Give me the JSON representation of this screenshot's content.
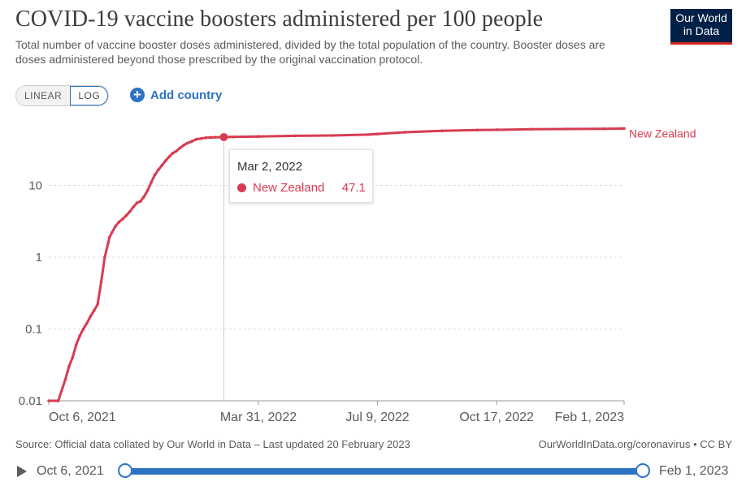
{
  "header": {
    "title": "COVID-19 vaccine boosters administered per 100 people",
    "subtitle": "Total number of vaccine booster doses administered, divided by the total population of the country. Booster doses are doses administered beyond those prescribed by the original vaccination protocol.",
    "logo_line1": "Our World",
    "logo_line2": "in Data"
  },
  "controls": {
    "scale_linear": "LINEAR",
    "scale_log": "LOG",
    "active_scale": "LOG",
    "add_country_label": "Add country"
  },
  "tooltip": {
    "date": "Mar 2, 2022",
    "entity": "New Zealand",
    "value": "47.1"
  },
  "footer": {
    "source": "Source: Official data collated by Our World in Data – Last updated 20 February 2023",
    "license": "OurWorldInData.org/coronavirus • CC BY"
  },
  "timeline": {
    "start_label": "Oct 6, 2021",
    "end_label": "Feb 1, 2023"
  },
  "colors": {
    "series": "#d73c50",
    "accent": "#2c73c4",
    "logo_bg": "#002147"
  },
  "chart_data": {
    "type": "line",
    "title": "COVID-19 vaccine boosters administered per 100 people",
    "yscale": "log",
    "ylim": [
      0.01,
      100
    ],
    "y_ticks": [
      {
        "value": 0.01,
        "label": "0.01"
      },
      {
        "value": 0.1,
        "label": "0.1"
      },
      {
        "value": 1,
        "label": "1"
      },
      {
        "value": 10,
        "label": "10"
      }
    ],
    "xlim": [
      "2021-10-06",
      "2023-02-01"
    ],
    "x_ticks": [
      {
        "date": "2021-10-06",
        "label": "Oct 6, 2021"
      },
      {
        "date": "2022-03-31",
        "label": "Mar 31, 2022"
      },
      {
        "date": "2022-07-09",
        "label": "Jul 9, 2022"
      },
      {
        "date": "2022-10-17",
        "label": "Oct 17, 2022"
      },
      {
        "date": "2023-02-01",
        "label": "Feb 1, 2023"
      }
    ],
    "grid": "horizontal-dashed",
    "legend": "end-of-line label",
    "highlight": {
      "date": "2022-03-02",
      "value": 47.1
    },
    "series": [
      {
        "name": "New Zealand",
        "x": [
          "2021-10-06",
          "2021-10-14",
          "2021-10-20",
          "2021-10-23",
          "2021-10-26",
          "2021-10-29",
          "2021-11-01",
          "2021-11-04",
          "2021-11-07",
          "2021-11-10",
          "2021-11-13",
          "2021-11-16",
          "2021-11-19",
          "2021-11-22",
          "2021-11-25",
          "2021-11-26",
          "2021-11-28",
          "2021-12-01",
          "2021-12-04",
          "2021-12-07",
          "2021-12-10",
          "2021-12-13",
          "2021-12-16",
          "2021-12-19",
          "2021-12-22",
          "2021-12-25",
          "2021-12-28",
          "2021-12-31",
          "2022-01-03",
          "2022-01-06",
          "2022-01-09",
          "2022-01-12",
          "2022-01-15",
          "2022-01-18",
          "2022-01-21",
          "2022-01-24",
          "2022-01-27",
          "2022-01-30",
          "2022-02-03",
          "2022-02-07",
          "2022-02-11",
          "2022-02-15",
          "2022-02-19",
          "2022-02-23",
          "2022-03-02",
          "2022-03-10",
          "2022-03-31",
          "2022-05-01",
          "2022-06-01",
          "2022-07-01",
          "2022-07-09",
          "2022-08-01",
          "2022-09-01",
          "2022-10-01",
          "2022-10-17",
          "2022-11-15",
          "2022-12-15",
          "2023-01-15",
          "2023-02-01"
        ],
        "values": [
          0.01,
          0.01,
          0.02,
          0.03,
          0.04,
          0.06,
          0.08,
          0.1,
          0.12,
          0.15,
          0.18,
          0.22,
          0.45,
          1.0,
          1.6,
          1.9,
          2.2,
          2.7,
          3.1,
          3.4,
          3.8,
          4.3,
          5.0,
          5.7,
          6.0,
          7.0,
          8.5,
          11.0,
          14.0,
          16.5,
          19.0,
          22.0,
          25.0,
          28.0,
          30.0,
          33.0,
          36.0,
          38.5,
          41.0,
          44.0,
          45.0,
          46.0,
          46.5,
          46.8,
          47.1,
          47.4,
          48.0,
          49.0,
          49.5,
          51.0,
          52.0,
          55.0,
          57.5,
          59.0,
          59.5,
          60.5,
          61.0,
          61.5,
          62.0
        ]
      }
    ]
  }
}
